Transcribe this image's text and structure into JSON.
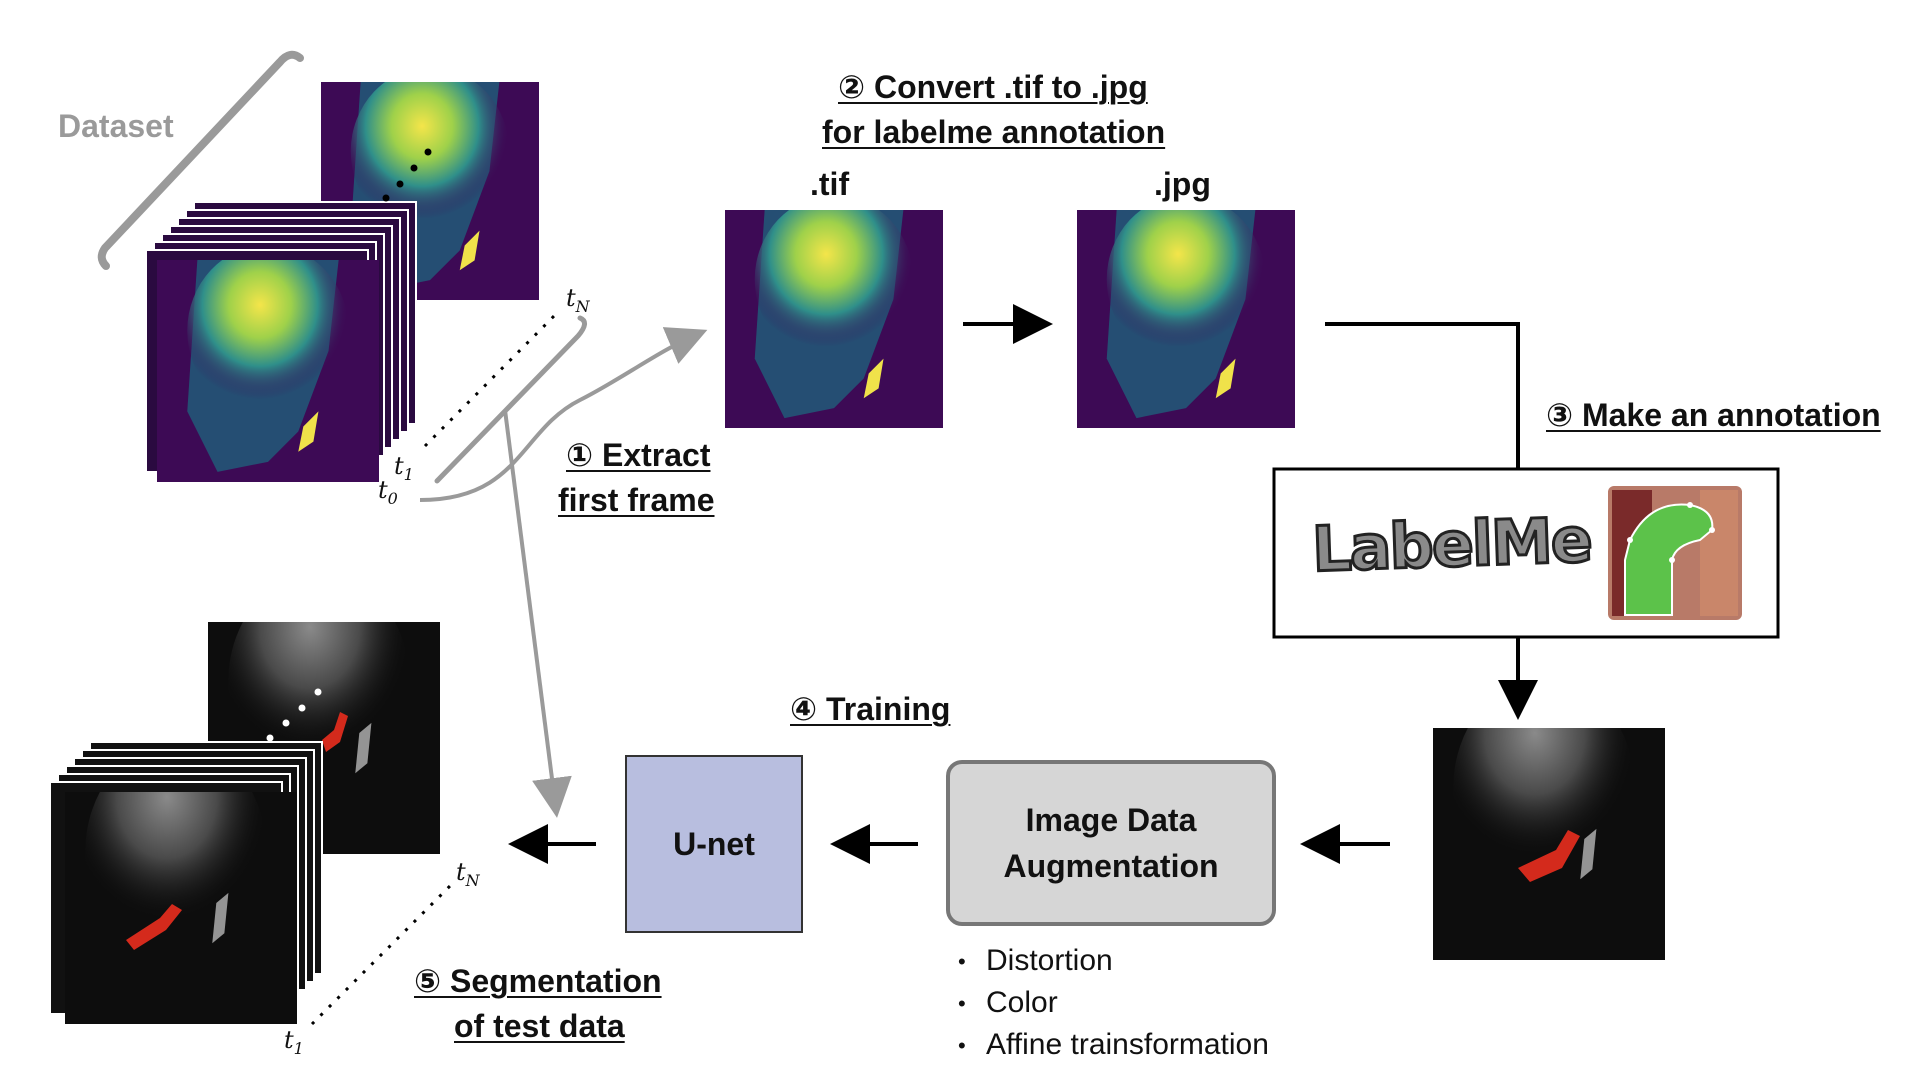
{
  "dataset_label": "Dataset",
  "steps": {
    "extract": [
      "① Extract",
      "first frame"
    ],
    "convert": [
      "② Convert .tif to .jpg",
      "for labelme annotation"
    ],
    "annotate": "③ Make an annotation",
    "train": "④ Training",
    "segment": [
      "⑤ Segmentation",
      "of test data"
    ]
  },
  "images": {
    "tif_label": ".tif",
    "jpg_label": ".jpg"
  },
  "labelme_logo": "LabelMe",
  "unet_label": "U-net",
  "augmentation": {
    "title": [
      "Image Data",
      "Augmentation"
    ],
    "items": [
      "Distortion",
      "Color",
      "Affine trainsformation"
    ]
  },
  "time_labels": {
    "t0": {
      "base": "t",
      "sub": "0"
    },
    "t1": {
      "base": "t",
      "sub": "1"
    },
    "tN": {
      "base": "t",
      "sub": "N"
    }
  },
  "colors": {
    "fluor_bg": "#3d0a55",
    "fluor_hi": "#f0e24a",
    "gray_arrow": "#9a9a9a",
    "unet_fill": "#b8bedf",
    "aug_fill": "#d6d6d6",
    "mask_red": "#d42a1c"
  }
}
